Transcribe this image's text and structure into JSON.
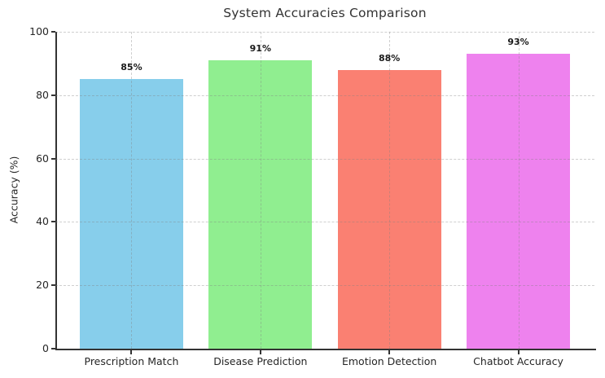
{
  "chart_data": {
    "type": "bar",
    "title": "System Accuracies Comparison",
    "xlabel": "",
    "ylabel": "Accuracy (%)",
    "categories": [
      "Prescription Match",
      "Disease Prediction",
      "Emotion Detection",
      "Chatbot Accuracy"
    ],
    "values": [
      85,
      91,
      88,
      93
    ],
    "bar_labels": [
      "85%",
      "91%",
      "88%",
      "93%"
    ],
    "bar_colors": [
      "#87CEEB",
      "#90EE90",
      "#FA8072",
      "#EE82EE"
    ],
    "ylim": [
      0,
      100
    ],
    "yticks": [
      0,
      20,
      40,
      60,
      80,
      100
    ],
    "grid": "both-dashed",
    "legend": "none"
  }
}
